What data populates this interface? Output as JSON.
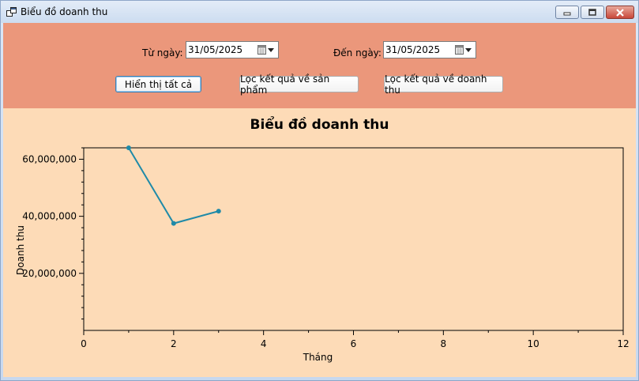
{
  "window": {
    "title": "Biểu đồ doanh thu"
  },
  "filters": {
    "from_label": "Từ ngày:",
    "from_value": "31/05/2025",
    "to_label": "Đến ngày:",
    "to_value": "31/05/2025"
  },
  "buttons": {
    "show_all": "Hiển thị tất cả",
    "filter_products": "Lọc kết quả về sản phẩm",
    "filter_revenue": "Lọc kết quả về doanh thu"
  },
  "icons": {
    "app": "app-icon",
    "minimize": "minimize-icon",
    "maximize": "maximize-icon",
    "close": "close-icon",
    "calendar": "calendar-icon",
    "dropdown": "chevron-down-icon"
  },
  "colors": {
    "filter_panel": "#eb977b",
    "chart_bg": "#fddbb7",
    "series": "#1f8aa8"
  },
  "chart_data": {
    "type": "line",
    "title": "Biểu đồ doanh thu",
    "xlabel": "Tháng",
    "ylabel": "Doanh thu",
    "xlim": [
      0,
      12
    ],
    "ylim": [
      0,
      64000000
    ],
    "x_ticks": [
      0,
      2,
      4,
      6,
      8,
      10,
      12
    ],
    "x_tick_labels": [
      "0",
      "2",
      "4",
      "6",
      "8",
      "10",
      "12"
    ],
    "y_ticks": [
      20000000,
      40000000,
      60000000
    ],
    "y_tick_labels": [
      "20,000,000",
      "40,000,000",
      "60,000,000"
    ],
    "grid": false,
    "legend": "none",
    "series": [
      {
        "x": [
          1,
          2,
          3
        ],
        "y": [
          64000000,
          37500000,
          41800000
        ]
      }
    ]
  }
}
